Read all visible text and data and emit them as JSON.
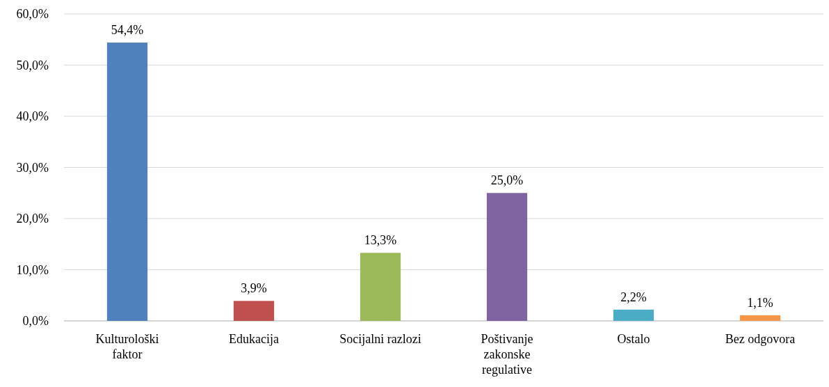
{
  "chart_data": {
    "type": "bar",
    "categories": [
      "Kulturološki faktor",
      "Edukacija",
      "Socijalni razlozi",
      "Poštivanje zakonske regulative",
      "Ostalo",
      "Bez odgovora"
    ],
    "values": [
      54.4,
      3.9,
      13.3,
      25.0,
      2.2,
      1.1
    ],
    "colors": [
      "#4f81bd",
      "#c0504d",
      "#9bbb59",
      "#8064a2",
      "#4bacc6",
      "#f79646"
    ],
    "value_labels": [
      "54,4%",
      "3,9%",
      "13,3%",
      "25,0%",
      "2,2%",
      "1,1%"
    ],
    "ylim": [
      0,
      60
    ],
    "yticks": [
      {
        "value": 0,
        "label": "0,0%"
      },
      {
        "value": 10,
        "label": "10,0%"
      },
      {
        "value": 20,
        "label": "20,0%"
      },
      {
        "value": 30,
        "label": "30,0%"
      },
      {
        "value": 40,
        "label": "40,0%"
      },
      {
        "value": 50,
        "label": "50,0%"
      },
      {
        "value": 60,
        "label": "60,0%"
      }
    ],
    "grid": "y"
  }
}
